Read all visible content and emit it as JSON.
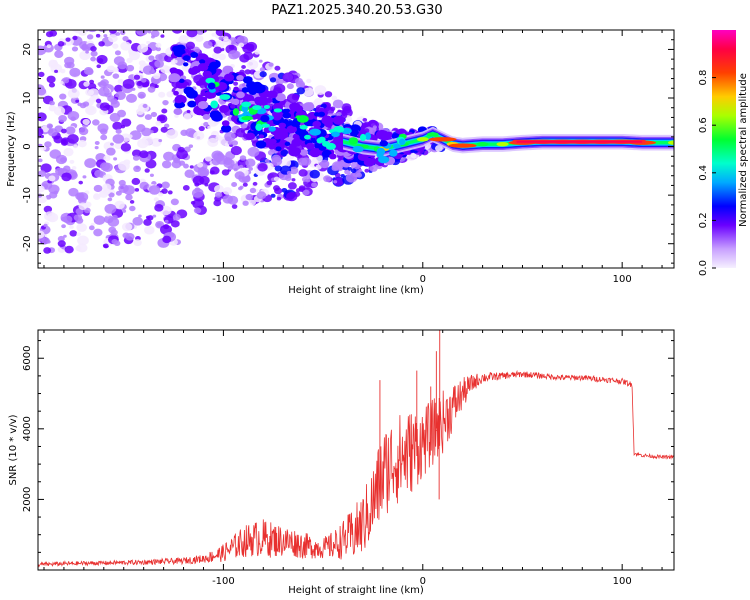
{
  "chart_data": [
    {
      "type": "heatmap",
      "title": "PAZ1.2025.340.20.53.G30",
      "xlabel": "Height of straight line (km)",
      "ylabel": "Frequency (Hz)",
      "xlim": [
        -193,
        126
      ],
      "ylim": [
        -25,
        24
      ],
      "xticks": [
        -100,
        0,
        100
      ],
      "xtick_labels": [
        "-100",
        "0",
        "100"
      ],
      "yticks": [
        -20,
        -10,
        0,
        10,
        20
      ],
      "ytick_labels": [
        "-20",
        "-10",
        "0",
        "10",
        "20"
      ],
      "colorbar": {
        "label": "Normalized spectral amplitude",
        "range": [
          0,
          1
        ],
        "ticks": [
          0.0,
          0.2,
          0.4,
          0.6,
          0.8
        ],
        "tick_labels": [
          "0.0",
          "0.2",
          "0.4",
          "0.6",
          "0.8"
        ],
        "colormap": [
          "#f4eaff",
          "#b27cff",
          "#6a00ff",
          "#0000ff",
          "#00b4ff",
          "#00ffd0",
          "#00ff40",
          "#b4ff00",
          "#ffcc00",
          "#ff4000",
          "#ff004c",
          "#ff00cc"
        ]
      },
      "ridge": {
        "x": [
          -190,
          -170,
          -150,
          -130,
          -110,
          -95,
          -80,
          -65,
          -50,
          -40,
          -30,
          -20,
          -10,
          0,
          5,
          10,
          15,
          20,
          30,
          40,
          50,
          60,
          70,
          80,
          90,
          100,
          110,
          126
        ],
        "frequency": [
          22,
          20,
          18,
          15,
          12,
          9,
          6,
          4,
          3,
          1,
          0,
          -0.5,
          0.5,
          1.5,
          2.5,
          1.5,
          0.5,
          0.2,
          0.5,
          0.5,
          0.8,
          1,
          1,
          1,
          1,
          1,
          0.8,
          0.8
        ],
        "amplitude": [
          0.15,
          0.15,
          0.2,
          0.25,
          0.3,
          0.3,
          0.3,
          0.35,
          0.4,
          0.4,
          0.5,
          0.7,
          0.55,
          0.6,
          0.5,
          0.85,
          0.7,
          0.85,
          0.55,
          0.6,
          0.85,
          0.9,
          0.9,
          0.9,
          0.9,
          0.85,
          0.85,
          0.6
        ]
      }
    },
    {
      "type": "line",
      "xlabel": "Height of straight line (km)",
      "ylabel": "SNR (10 * v/v)",
      "xlim": [
        -193,
        126
      ],
      "ylim": [
        0,
        6800
      ],
      "xticks": [
        -100,
        0,
        100
      ],
      "xtick_labels": [
        "-100",
        "0",
        "100"
      ],
      "yticks": [
        2000,
        4000,
        6000
      ],
      "ytick_labels": [
        "2000",
        "4000",
        "6000"
      ],
      "color": "#e8302f",
      "series": [
        {
          "name": "SNR",
          "x": [
            -193,
            -180,
            -160,
            -140,
            -120,
            -110,
            -100,
            -95,
            -90,
            -85,
            -80,
            -75,
            -70,
            -65,
            -60,
            -55,
            -50,
            -45,
            -40,
            -35,
            -30,
            -25,
            -20,
            -15,
            -10,
            -5,
            0,
            5,
            10,
            15,
            20,
            25,
            30,
            40,
            50,
            60,
            70,
            80,
            90,
            100,
            105,
            106,
            110,
            120,
            126
          ],
          "y": [
            150,
            180,
            200,
            220,
            260,
            320,
            480,
            650,
            800,
            880,
            900,
            850,
            820,
            780,
            700,
            650,
            620,
            700,
            850,
            1000,
            1300,
            1900,
            2700,
            3100,
            3200,
            3400,
            3600,
            3900,
            4200,
            4600,
            5000,
            5300,
            5450,
            5500,
            5550,
            5500,
            5450,
            5450,
            5400,
            5350,
            5250,
            3300,
            3250,
            3200,
            3200
          ],
          "noise": [
            60,
            60,
            60,
            70,
            90,
            120,
            250,
            350,
            450,
            500,
            550,
            500,
            450,
            420,
            380,
            330,
            300,
            400,
            550,
            750,
            900,
            1100,
            1300,
            1300,
            1300,
            1200,
            1000,
            950,
            900,
            700,
            450,
            250,
            150,
            100,
            90,
            80,
            80,
            80,
            80,
            80,
            80,
            50,
            50,
            50,
            50
          ],
          "spikes": [
            {
              "x": 8.5,
              "y": 6800
            },
            {
              "x": 6.8,
              "y": 6200
            },
            {
              "x": 4.0,
              "y": 5200
            },
            {
              "x": -3.0,
              "y": 5650
            },
            {
              "x": -21.5,
              "y": 5380
            },
            {
              "x": 8.2,
              "y": 2000
            }
          ]
        }
      ]
    }
  ]
}
